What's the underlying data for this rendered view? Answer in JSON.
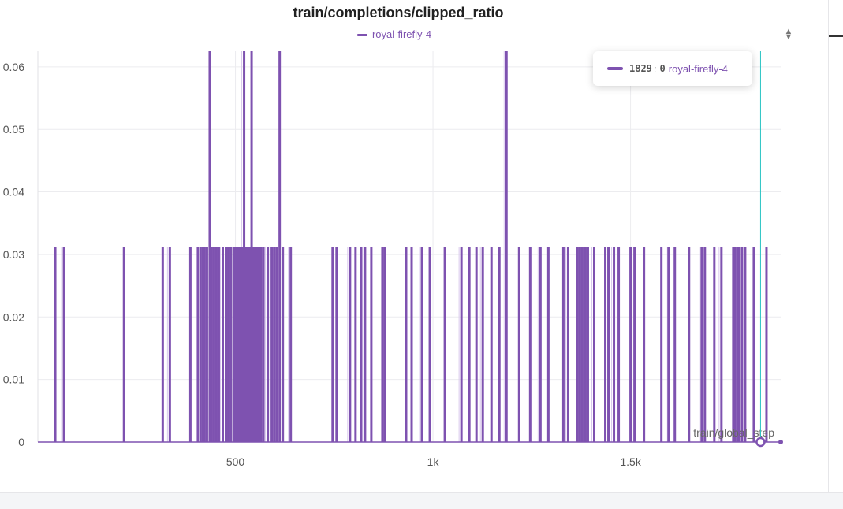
{
  "panel": {
    "title": "train/completions/clipped_ratio",
    "legend_label": "royal-firefly-4",
    "sort_icon": "sort-icon"
  },
  "tooltip": {
    "step": "1829",
    "separator": ":",
    "value": "0",
    "run": "royal-firefly-4"
  },
  "colors": {
    "series": "#7e52b0",
    "series_faint": "#d9c8ee",
    "cursor": "#2bc4c4",
    "grid": "#ececef"
  },
  "chart_data": {
    "type": "line",
    "title": "train/completions/clipped_ratio",
    "xlabel": "train/global_step",
    "ylabel": "",
    "xlim": [
      0,
      1880
    ],
    "ylim": [
      0,
      0.0625
    ],
    "y_ticks": [
      0,
      0.01,
      0.02,
      0.03,
      0.04,
      0.05,
      0.06
    ],
    "y_tick_labels": [
      "0",
      "0.01",
      "0.02",
      "0.03",
      "0.04",
      "0.05",
      "0.06"
    ],
    "x_ticks": [
      500,
      1000,
      1500
    ],
    "x_tick_labels": [
      "500",
      "1k",
      "1.5k"
    ],
    "grid": true,
    "legend": "top-center",
    "series": [
      {
        "name": "royal-firefly-4",
        "baseline": 0,
        "spikes": [
          [
            44,
            0.03125
          ],
          [
            66,
            0.03125
          ],
          [
            218,
            0.03125
          ],
          [
            316,
            0.03125
          ],
          [
            334,
            0.03125
          ],
          [
            386,
            0.03125
          ],
          [
            405,
            0.03125
          ],
          [
            412,
            0.03125
          ],
          [
            418,
            0.03125
          ],
          [
            422,
            0.03125
          ],
          [
            428,
            0.03125
          ],
          [
            435,
            0.0625
          ],
          [
            440,
            0.03125
          ],
          [
            446,
            0.03125
          ],
          [
            452,
            0.03125
          ],
          [
            458,
            0.03125
          ],
          [
            468,
            0.03125
          ],
          [
            476,
            0.03125
          ],
          [
            482,
            0.03125
          ],
          [
            488,
            0.03125
          ],
          [
            495,
            0.03125
          ],
          [
            500,
            0.03125
          ],
          [
            507,
            0.03125
          ],
          [
            512,
            0.03125
          ],
          [
            517,
            0.03125
          ],
          [
            522,
            0.0625
          ],
          [
            527,
            0.03125
          ],
          [
            532,
            0.03125
          ],
          [
            537,
            0.03125
          ],
          [
            541,
            0.0625
          ],
          [
            545,
            0.03125
          ],
          [
            549,
            0.03125
          ],
          [
            553,
            0.03125
          ],
          [
            557,
            0.03125
          ],
          [
            561,
            0.03125
          ],
          [
            565,
            0.03125
          ],
          [
            571,
            0.03125
          ],
          [
            582,
            0.03125
          ],
          [
            592,
            0.03125
          ],
          [
            598,
            0.03125
          ],
          [
            604,
            0.03125
          ],
          [
            612,
            0.0625
          ],
          [
            620,
            0.03125
          ],
          [
            640,
            0.03125
          ],
          [
            746,
            0.03125
          ],
          [
            756,
            0.03125
          ],
          [
            790,
            0.03125
          ],
          [
            804,
            0.03125
          ],
          [
            818,
            0.03125
          ],
          [
            828,
            0.03125
          ],
          [
            844,
            0.03125
          ],
          [
            872,
            0.03125
          ],
          [
            878,
            0.03125
          ],
          [
            932,
            0.03125
          ],
          [
            946,
            0.03125
          ],
          [
            972,
            0.03125
          ],
          [
            992,
            0.03125
          ],
          [
            1030,
            0.03125
          ],
          [
            1072,
            0.03125
          ],
          [
            1092,
            0.03125
          ],
          [
            1110,
            0.03125
          ],
          [
            1126,
            0.03125
          ],
          [
            1148,
            0.03125
          ],
          [
            1168,
            0.03125
          ],
          [
            1186,
            0.0625
          ],
          [
            1218,
            0.03125
          ],
          [
            1246,
            0.03125
          ],
          [
            1272,
            0.03125
          ],
          [
            1292,
            0.03125
          ],
          [
            1330,
            0.03125
          ],
          [
            1342,
            0.03125
          ],
          [
            1366,
            0.03125
          ],
          [
            1372,
            0.03125
          ],
          [
            1378,
            0.03125
          ],
          [
            1386,
            0.03125
          ],
          [
            1392,
            0.03125
          ],
          [
            1408,
            0.03125
          ],
          [
            1436,
            0.03125
          ],
          [
            1444,
            0.03125
          ],
          [
            1458,
            0.03125
          ],
          [
            1470,
            0.03125
          ],
          [
            1500,
            0.03125
          ],
          [
            1510,
            0.03125
          ],
          [
            1534,
            0.03125
          ],
          [
            1578,
            0.03125
          ],
          [
            1596,
            0.03125
          ],
          [
            1612,
            0.03125
          ],
          [
            1648,
            0.03125
          ],
          [
            1680,
            0.03125
          ],
          [
            1688,
            0.03125
          ],
          [
            1712,
            0.03125
          ],
          [
            1730,
            0.03125
          ],
          [
            1760,
            0.03125
          ],
          [
            1764,
            0.03125
          ],
          [
            1770,
            0.03125
          ],
          [
            1775,
            0.03125
          ],
          [
            1782,
            0.03125
          ],
          [
            1790,
            0.03125
          ],
          [
            1812,
            0.03125
          ],
          [
            1844,
            0.03125
          ]
        ]
      }
    ],
    "hover_step": 1829,
    "hover_value": 0
  }
}
